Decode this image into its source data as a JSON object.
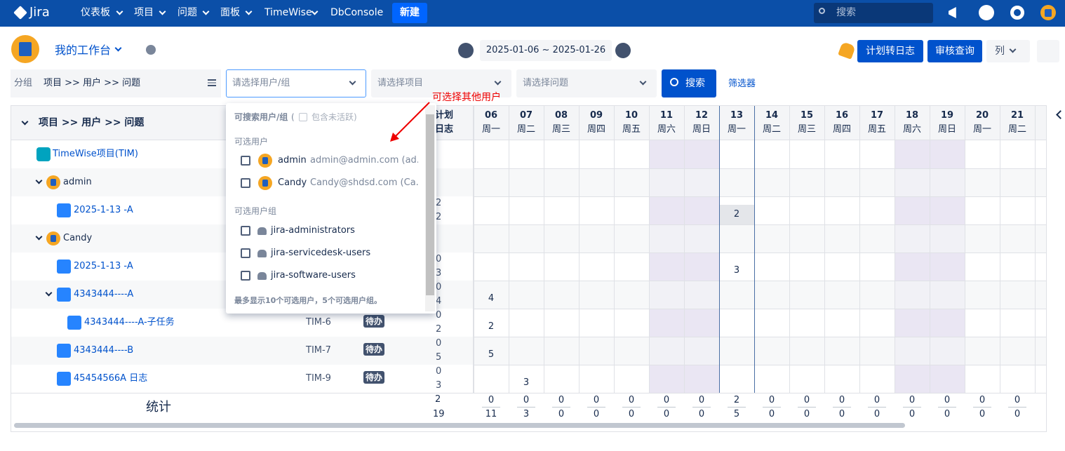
{
  "nav": {
    "logo": "Jira",
    "items": [
      "仪表板",
      "项目",
      "问题",
      "面板",
      "TimeWise",
      "DbConsole"
    ],
    "create": "新建",
    "search": "搜索"
  },
  "toolbar": {
    "title": "我的工作台",
    "date_range": "2025-01-06 ~ 2025-01-26",
    "buttons": [
      "计划转日志",
      "审核查询",
      "列"
    ]
  },
  "filters": {
    "group_label": "分组",
    "group_value": "项目 >> 用户 >> 问题",
    "user_placeholder": "请选择用户/组",
    "project_placeholder": "请选择项目",
    "issue_placeholder": "请选择问题",
    "search": "搜索",
    "filter": "筛选器"
  },
  "dropdown": {
    "heading": "可搜索用户/组",
    "paren_open": "(",
    "include_inactive": "包含未活跃)",
    "users_label": "可选用户",
    "users": [
      {
        "name": "admin",
        "email": "admin@admin.com (ad..."
      },
      {
        "name": "Candy",
        "email": "Candy@shdsd.com (Ca..."
      }
    ],
    "groups_label": "可选用户组",
    "groups": [
      "jira-administrators",
      "jira-servicedesk-users",
      "jira-software-users"
    ],
    "footer": "最多显示10个可选用户，5个可选用户组。"
  },
  "annotation": "可选择其他用户",
  "table": {
    "header": "项目 >> 用户 >> 问题",
    "plan_header": "计划",
    "log_header": "日志",
    "days": [
      {
        "day": "06",
        "weekday": "周一"
      },
      {
        "day": "07",
        "weekday": "周二"
      },
      {
        "day": "08",
        "weekday": "周三"
      },
      {
        "day": "09",
        "weekday": "周四"
      },
      {
        "day": "10",
        "weekday": "周五"
      },
      {
        "day": "11",
        "weekday": "周六"
      },
      {
        "day": "12",
        "weekday": "周日"
      },
      {
        "day": "13",
        "weekday": "周一"
      },
      {
        "day": "14",
        "weekday": "周二"
      },
      {
        "day": "15",
        "weekday": "周三"
      },
      {
        "day": "16",
        "weekday": "周四"
      },
      {
        "day": "17",
        "weekday": "周五"
      },
      {
        "day": "18",
        "weekday": "周六"
      },
      {
        "day": "19",
        "weekday": "周日"
      },
      {
        "day": "20",
        "weekday": "周一"
      },
      {
        "day": "21",
        "weekday": "周二"
      }
    ],
    "rows": [
      {
        "name": "TimeWise项目(TIM)"
      },
      {
        "name": "admin"
      },
      {
        "name": "2025-1-13 -A",
        "plan": 2,
        "log": 2,
        "cells": [
          null,
          null,
          null,
          null,
          null,
          null,
          null,
          2,
          null,
          null,
          null,
          null,
          null,
          null,
          null,
          null
        ]
      },
      {
        "name": "Candy"
      },
      {
        "name": "2025-1-13 -A",
        "plan": 0,
        "log": 3,
        "cells": [
          null,
          null,
          null,
          null,
          null,
          null,
          null,
          3,
          null,
          null,
          null,
          null,
          null,
          null,
          null,
          null
        ]
      },
      {
        "name": "4343444----A",
        "plan": 0,
        "log": 4,
        "cells": [
          4,
          null,
          null,
          null,
          null,
          null,
          null,
          null,
          null,
          null,
          null,
          null,
          null,
          null,
          null,
          null
        ]
      },
      {
        "name": "4343444----A-子任务",
        "key": "TIM-6",
        "status": "待办",
        "plan": 0,
        "log": 2,
        "cells": [
          2,
          null,
          null,
          null,
          null,
          null,
          null,
          null,
          null,
          null,
          null,
          null,
          null,
          null,
          null,
          null
        ]
      },
      {
        "name": "4343444----B",
        "key": "TIM-7",
        "status": "待办",
        "plan": 0,
        "log": 5,
        "cells": [
          5,
          null,
          null,
          null,
          null,
          null,
          null,
          null,
          null,
          null,
          null,
          null,
          null,
          null,
          null,
          null
        ]
      },
      {
        "name": "45454566A 日志",
        "key": "TIM-9",
        "status": "待办",
        "plan": 0,
        "log": 3,
        "cells": [
          null,
          3,
          null,
          null,
          null,
          null,
          null,
          null,
          null,
          null,
          null,
          null,
          null,
          null,
          null,
          null
        ]
      }
    ],
    "summary": {
      "label": "统计",
      "plan": 2,
      "log": 19,
      "plan_by_day": [
        0,
        0,
        0,
        0,
        0,
        0,
        0,
        2,
        0,
        0,
        0,
        0,
        0,
        0,
        0,
        0
      ],
      "log_by_day": [
        11,
        3,
        0,
        0,
        0,
        0,
        0,
        5,
        0,
        0,
        0,
        0,
        0,
        0,
        0,
        0
      ]
    }
  }
}
